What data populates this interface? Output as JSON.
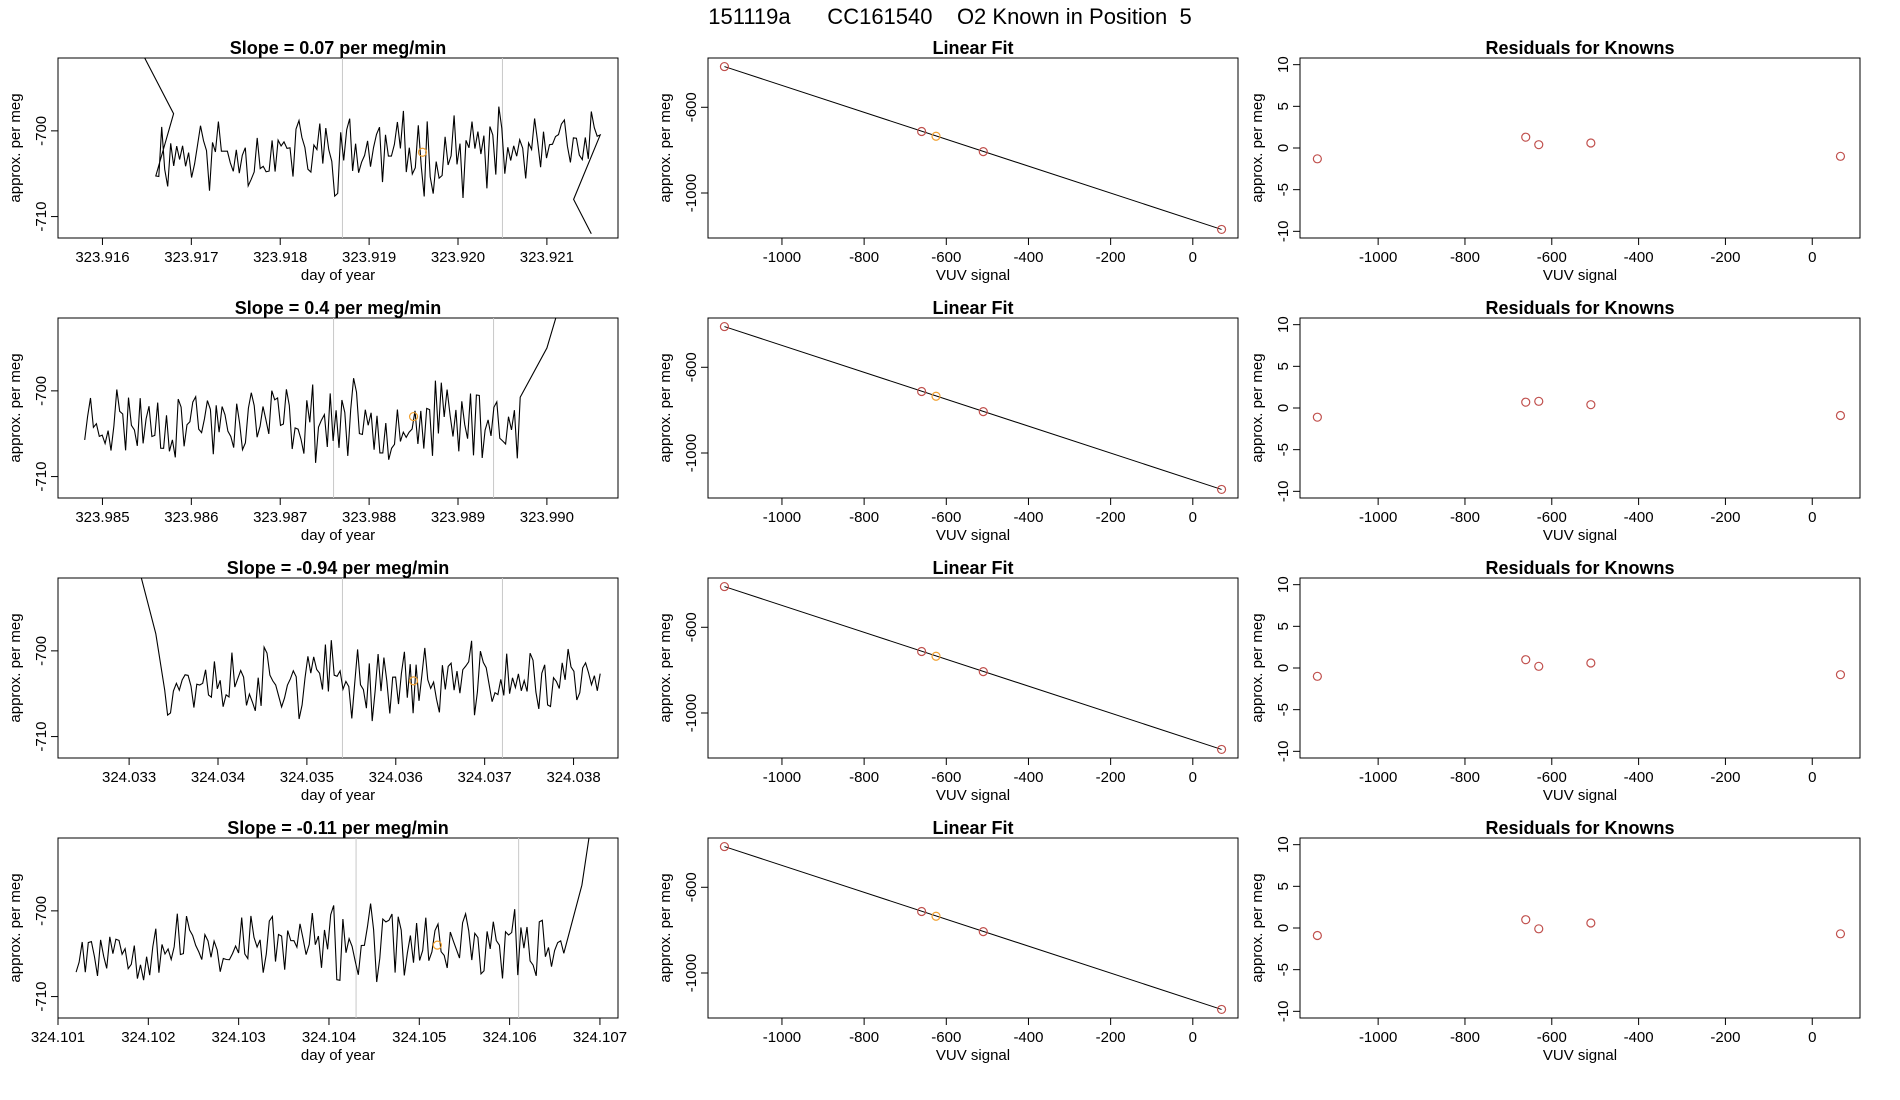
{
  "figure": {
    "title": "151119a      CC161540    O2 Known in Position  5"
  },
  "colors": {
    "line": "#000000",
    "frame": "#000000",
    "vline": "#c8c8c8",
    "known_point": "#c0504d",
    "highlight_point": "#f0a030"
  },
  "chart_data": [
    {
      "type": "line",
      "row": 0,
      "col": 0,
      "title": "Slope =  0.07  per meg/min",
      "xlabel": "day of year",
      "ylabel": "approx. per meg",
      "xlim": [
        323.9155,
        323.9218
      ],
      "ylim": [
        -712.5,
        -691.5
      ],
      "xticks": [
        323.916,
        323.917,
        323.918,
        323.919,
        323.92,
        323.921
      ],
      "xtick_labels": [
        "323.916",
        "323.917",
        "323.918",
        "323.919",
        "323.920",
        "323.921"
      ],
      "yticks": [
        -700,
        -710
      ],
      "ytick_labels": [
        "-700",
        "-710"
      ],
      "vlines": [
        323.9187,
        323.9205
      ],
      "highlight": {
        "x": 323.9196,
        "y": -702.5
      },
      "series_params": {
        "x_start": 323.9166,
        "x_end": 323.9216,
        "n": 150,
        "mean": -702.5,
        "amp": 3.5,
        "seed": 11,
        "head": [
          [
            323.9164,
            -690
          ],
          [
            323.9166,
            -694
          ],
          [
            323.9168,
            -698
          ]
        ],
        "tail": [
          [
            323.9213,
            -708
          ],
          [
            323.9215,
            -712
          ]
        ]
      }
    },
    {
      "type": "scatter",
      "row": 0,
      "col": 1,
      "title": "Linear Fit",
      "xlabel": "VUV signal",
      "ylabel": "approx. per meg",
      "xlim": [
        -1180,
        110
      ],
      "ylim": [
        -1210,
        -370
      ],
      "xticks": [
        -1000,
        -800,
        -600,
        -400,
        -200,
        0
      ],
      "xtick_labels": [
        "-1000",
        "-800",
        "-600",
        "-400",
        "-200",
        "0"
      ],
      "yticks": [
        -600,
        -1000
      ],
      "ytick_labels": [
        "-600",
        "-1000"
      ],
      "fit_line": [
        [
          -1140,
          -410
        ],
        [
          70,
          -1170
        ]
      ],
      "points": [
        [
          -1140,
          -410
        ],
        [
          -660,
          -713
        ],
        [
          -625,
          -735
        ],
        [
          -510,
          -807
        ],
        [
          70,
          -1170
        ]
      ],
      "highlight_index": 2
    },
    {
      "type": "scatter",
      "row": 0,
      "col": 2,
      "title": "Residuals for Knowns",
      "xlabel": "VUV signal",
      "ylabel": "approx. per meg",
      "xlim": [
        -1180,
        110
      ],
      "ylim": [
        -10.8,
        10.8
      ],
      "xticks": [
        -1000,
        -800,
        -600,
        -400,
        -200,
        0
      ],
      "xtick_labels": [
        "-1000",
        "-800",
        "-600",
        "-400",
        "-200",
        "0"
      ],
      "yticks": [
        10,
        5,
        0,
        -5,
        -10
      ],
      "ytick_labels": [
        "10",
        "5",
        "0",
        "-5",
        "-10"
      ],
      "points": [
        [
          -1140,
          -1.3
        ],
        [
          -660,
          1.3
        ],
        [
          -630,
          0.4
        ],
        [
          -510,
          0.6
        ],
        [
          65,
          -1.0
        ]
      ]
    },
    {
      "type": "line",
      "row": 1,
      "col": 0,
      "title": "Slope =  0.4  per meg/min",
      "xlabel": "day of year",
      "ylabel": "approx. per meg",
      "xlim": [
        323.9845,
        323.9908
      ],
      "ylim": [
        -712.5,
        -691.5
      ],
      "xticks": [
        323.985,
        323.986,
        323.987,
        323.988,
        323.989,
        323.99
      ],
      "xtick_labels": [
        "323.985",
        "323.986",
        "323.987",
        "323.988",
        "323.989",
        "323.990"
      ],
      "yticks": [
        -700,
        -710
      ],
      "ytick_labels": [
        "-700",
        "-710"
      ],
      "vlines": [
        323.9876,
        323.9894
      ],
      "highlight": {
        "x": 323.9885,
        "y": -703.0
      },
      "series_params": {
        "x_start": 323.9848,
        "x_end": 323.9897,
        "n": 150,
        "mean": -703.5,
        "amp": 3.3,
        "seed": 23,
        "head": [],
        "tail": [
          [
            323.99,
            -695
          ],
          [
            323.9902,
            -688
          ]
        ]
      }
    },
    {
      "type": "scatter",
      "row": 1,
      "col": 1,
      "title": "Linear Fit",
      "xlabel": "VUV signal",
      "ylabel": "approx. per meg",
      "xlim": [
        -1180,
        110
      ],
      "ylim": [
        -1210,
        -370
      ],
      "xticks": [
        -1000,
        -800,
        -600,
        -400,
        -200,
        0
      ],
      "xtick_labels": [
        "-1000",
        "-800",
        "-600",
        "-400",
        "-200",
        "0"
      ],
      "yticks": [
        -600,
        -1000
      ],
      "ytick_labels": [
        "-600",
        "-1000"
      ],
      "fit_line": [
        [
          -1140,
          -410
        ],
        [
          70,
          -1170
        ]
      ],
      "points": [
        [
          -1140,
          -410
        ],
        [
          -660,
          -713
        ],
        [
          -625,
          -735
        ],
        [
          -510,
          -807
        ],
        [
          70,
          -1170
        ]
      ],
      "highlight_index": 2
    },
    {
      "type": "scatter",
      "row": 1,
      "col": 2,
      "title": "Residuals for Knowns",
      "xlabel": "VUV signal",
      "ylabel": "approx. per meg",
      "xlim": [
        -1180,
        110
      ],
      "ylim": [
        -10.8,
        10.8
      ],
      "xticks": [
        -1000,
        -800,
        -600,
        -400,
        -200,
        0
      ],
      "xtick_labels": [
        "-1000",
        "-800",
        "-600",
        "-400",
        "-200",
        "0"
      ],
      "yticks": [
        10,
        5,
        0,
        -5,
        -10
      ],
      "ytick_labels": [
        "10",
        "5",
        "0",
        "-5",
        "-10"
      ],
      "points": [
        [
          -1140,
          -1.1
        ],
        [
          -660,
          0.7
        ],
        [
          -630,
          0.8
        ],
        [
          -510,
          0.4
        ],
        [
          65,
          -0.9
        ]
      ]
    },
    {
      "type": "line",
      "row": 2,
      "col": 0,
      "title": "Slope =  -0.94  per meg/min",
      "xlabel": "day of year",
      "ylabel": "approx. per meg",
      "xlim": [
        324.0322,
        324.0385
      ],
      "ylim": [
        -712.5,
        -691.5
      ],
      "xticks": [
        324.033,
        324.034,
        324.035,
        324.036,
        324.037,
        324.038
      ],
      "xtick_labels": [
        "324.033",
        "324.034",
        "324.035",
        "324.036",
        "324.037",
        "324.038"
      ],
      "yticks": [
        -700,
        -710
      ],
      "ytick_labels": [
        "-700",
        "-710"
      ],
      "vlines": [
        324.0354,
        324.0372
      ],
      "highlight": {
        "x": 324.0362,
        "y": -703.5
      },
      "series_params": {
        "x_start": 324.0334,
        "x_end": 324.0383,
        "n": 150,
        "mean": -703.5,
        "amp": 3.2,
        "seed": 37,
        "head": [
          [
            324.0331,
            -690
          ],
          [
            324.0332,
            -694
          ],
          [
            324.0333,
            -698
          ]
        ],
        "tail": []
      }
    },
    {
      "type": "scatter",
      "row": 2,
      "col": 1,
      "title": "Linear Fit",
      "xlabel": "VUV signal",
      "ylabel": "approx. per meg",
      "xlim": [
        -1180,
        110
      ],
      "ylim": [
        -1210,
        -370
      ],
      "xticks": [
        -1000,
        -800,
        -600,
        -400,
        -200,
        0
      ],
      "xtick_labels": [
        "-1000",
        "-800",
        "-600",
        "-400",
        "-200",
        "0"
      ],
      "yticks": [
        -600,
        -1000
      ],
      "ytick_labels": [
        "-600",
        "-1000"
      ],
      "fit_line": [
        [
          -1140,
          -410
        ],
        [
          70,
          -1170
        ]
      ],
      "points": [
        [
          -1140,
          -410
        ],
        [
          -660,
          -713
        ],
        [
          -625,
          -735
        ],
        [
          -510,
          -807
        ],
        [
          70,
          -1170
        ]
      ],
      "highlight_index": 2
    },
    {
      "type": "scatter",
      "row": 2,
      "col": 2,
      "title": "Residuals for Knowns",
      "xlabel": "VUV signal",
      "ylabel": "approx. per meg",
      "xlim": [
        -1180,
        110
      ],
      "ylim": [
        -10.8,
        10.8
      ],
      "xticks": [
        -1000,
        -800,
        -600,
        -400,
        -200,
        0
      ],
      "xtick_labels": [
        "-1000",
        "-800",
        "-600",
        "-400",
        "-200",
        "0"
      ],
      "yticks": [
        10,
        5,
        0,
        -5,
        -10
      ],
      "ytick_labels": [
        "10",
        "5",
        "0",
        "-5",
        "-10"
      ],
      "points": [
        [
          -1140,
          -1.0
        ],
        [
          -660,
          1.0
        ],
        [
          -630,
          0.2
        ],
        [
          -510,
          0.6
        ],
        [
          65,
          -0.8
        ]
      ]
    },
    {
      "type": "line",
      "row": 3,
      "col": 0,
      "title": "Slope =  -0.11  per meg/min",
      "xlabel": "day of year",
      "ylabel": "approx. per meg",
      "xlim": [
        324.101,
        324.1072
      ],
      "ylim": [
        -712.5,
        -691.5
      ],
      "xticks": [
        324.101,
        324.102,
        324.103,
        324.104,
        324.105,
        324.106,
        324.107
      ],
      "xtick_labels": [
        "324.101",
        "324.102",
        "324.103",
        "324.104",
        "324.105",
        "324.106",
        "324.107"
      ],
      "yticks": [
        -700,
        -710
      ],
      "ytick_labels": [
        "-700",
        "-710"
      ],
      "vlines": [
        324.1043,
        324.1061
      ],
      "highlight": {
        "x": 324.1052,
        "y": -704.0
      },
      "series_params": {
        "x_start": 324.1012,
        "x_end": 324.1066,
        "n": 160,
        "mean": -704.0,
        "amp": 3.2,
        "seed": 53,
        "head": [],
        "tail": [
          [
            324.1068,
            -697
          ],
          [
            324.1069,
            -690
          ]
        ]
      }
    },
    {
      "type": "scatter",
      "row": 3,
      "col": 1,
      "title": "Linear Fit",
      "xlabel": "VUV signal",
      "ylabel": "approx. per meg",
      "xlim": [
        -1180,
        110
      ],
      "ylim": [
        -1210,
        -370
      ],
      "xticks": [
        -1000,
        -800,
        -600,
        -400,
        -200,
        0
      ],
      "xtick_labels": [
        "-1000",
        "-800",
        "-600",
        "-400",
        "-200",
        "0"
      ],
      "yticks": [
        -600,
        -1000
      ],
      "ytick_labels": [
        "-600",
        "-1000"
      ],
      "fit_line": [
        [
          -1140,
          -410
        ],
        [
          70,
          -1170
        ]
      ],
      "points": [
        [
          -1140,
          -410
        ],
        [
          -660,
          -713
        ],
        [
          -625,
          -735
        ],
        [
          -510,
          -807
        ],
        [
          70,
          -1170
        ]
      ],
      "highlight_index": 2
    },
    {
      "type": "scatter",
      "row": 3,
      "col": 2,
      "title": "Residuals for Knowns",
      "xlabel": "VUV signal",
      "ylabel": "approx. per meg",
      "xlim": [
        -1180,
        110
      ],
      "ylim": [
        -10.8,
        10.8
      ],
      "xticks": [
        -1000,
        -800,
        -600,
        -400,
        -200,
        0
      ],
      "xtick_labels": [
        "-1000",
        "-800",
        "-600",
        "-400",
        "-200",
        "0"
      ],
      "yticks": [
        10,
        5,
        0,
        -5,
        -10
      ],
      "ytick_labels": [
        "10",
        "5",
        "0",
        "-5",
        "-10"
      ],
      "points": [
        [
          -1140,
          -0.9
        ],
        [
          -660,
          1.0
        ],
        [
          -630,
          -0.1
        ],
        [
          -510,
          0.6
        ],
        [
          65,
          -0.7
        ]
      ]
    }
  ]
}
